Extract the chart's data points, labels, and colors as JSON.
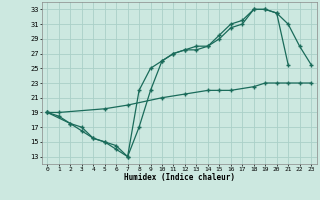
{
  "xlabel": "Humidex (Indice chaleur)",
  "bg_color": "#cce8e0",
  "grid_color": "#aad0c8",
  "line_color": "#1a6b5a",
  "xlim": [
    -0.5,
    23.5
  ],
  "ylim": [
    12,
    34
  ],
  "xticks": [
    0,
    1,
    2,
    3,
    4,
    5,
    6,
    7,
    8,
    9,
    10,
    11,
    12,
    13,
    14,
    15,
    16,
    17,
    18,
    19,
    20,
    21,
    22,
    23
  ],
  "yticks": [
    13,
    15,
    17,
    19,
    21,
    23,
    25,
    27,
    29,
    31,
    33
  ],
  "line1_x": [
    0,
    1,
    2,
    3,
    4,
    5,
    6,
    7,
    8,
    9,
    10,
    11,
    12,
    13,
    14,
    15,
    16,
    17,
    18,
    19,
    20,
    21
  ],
  "line1_y": [
    19,
    18.5,
    17.5,
    16.5,
    15.5,
    15,
    14,
    13,
    17,
    22,
    26,
    27,
    27.5,
    28,
    28,
    29.5,
    31,
    31.5,
    33,
    33,
    32.5,
    25.5
  ],
  "line2_x": [
    0,
    2,
    3,
    4,
    5,
    6,
    7,
    8,
    9,
    10,
    11,
    12,
    13,
    14,
    15,
    16,
    17,
    18,
    19,
    20,
    21,
    22,
    23
  ],
  "line2_y": [
    19,
    17.5,
    17,
    15.5,
    15,
    14.5,
    13,
    22,
    25,
    26,
    27,
    27.5,
    27.5,
    28,
    29,
    30.5,
    31,
    33,
    33,
    32.5,
    31,
    28,
    25.5
  ],
  "line3_x": [
    0,
    1,
    5,
    7,
    10,
    12,
    14,
    15,
    16,
    18,
    19,
    20,
    21,
    22,
    23
  ],
  "line3_y": [
    19,
    19,
    19.5,
    20,
    21,
    21.5,
    22,
    22,
    22,
    22.5,
    23,
    23,
    23,
    23,
    23
  ]
}
